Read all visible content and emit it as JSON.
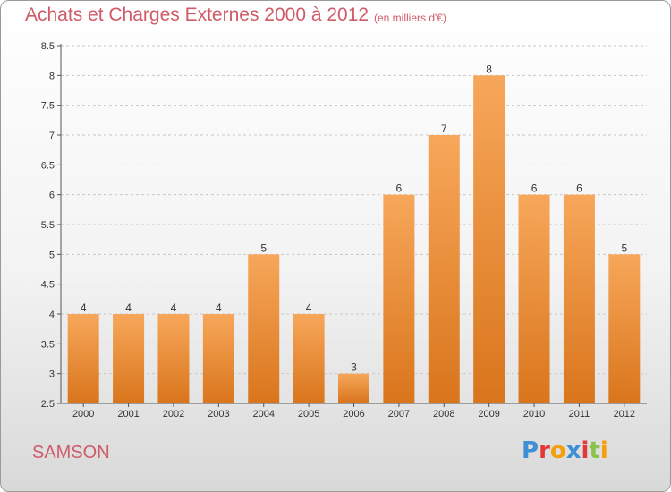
{
  "header": {
    "title": "Achats et Charges Externes 2000 à 2012",
    "subtitle": "(en milliers d'€)"
  },
  "footer": {
    "commune": "SAMSON",
    "logo_text": "Proxiti",
    "logo_colors": [
      "#3f8fd6",
      "#e23a3a",
      "#f4a00c",
      "#3f8fd6",
      "#e23a3a",
      "#8bc34a",
      "#f4a00c"
    ]
  },
  "colors": {
    "title": "#cf5b68",
    "bar_light": "#f7a75a",
    "bar_dark": "#d9751c",
    "grid": "#c8c8c8",
    "axis": "#555555",
    "text": "#333333"
  },
  "chart_data": {
    "type": "bar",
    "title": "Achats et Charges Externes 2000 à 2012",
    "subtitle": "(en milliers d'€)",
    "categories": [
      "2000",
      "2001",
      "2002",
      "2003",
      "2004",
      "2005",
      "2006",
      "2007",
      "2008",
      "2009",
      "2010",
      "2011",
      "2012"
    ],
    "values": [
      4,
      4,
      4,
      4,
      5,
      4,
      3,
      6,
      7,
      8,
      6,
      6,
      5
    ],
    "ylim": [
      2.5,
      8.5
    ],
    "yticks": [
      "2.5",
      "3",
      "3.5",
      "4",
      "4.5",
      "5",
      "5.5",
      "6",
      "6.5",
      "7",
      "7.5",
      "8",
      "8.5"
    ],
    "grid": true,
    "data_labels": true
  }
}
